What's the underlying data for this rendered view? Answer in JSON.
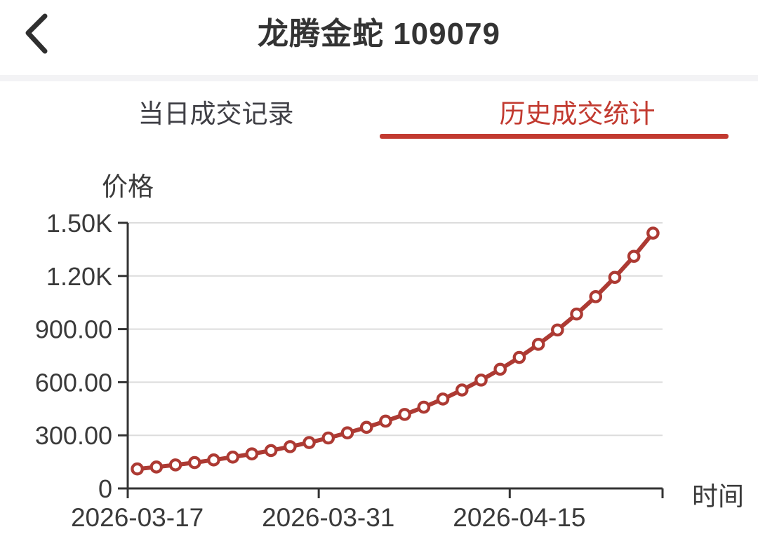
{
  "header": {
    "title": "龙腾金蛇 109079",
    "back_icon": "chevron-left"
  },
  "tabs": [
    {
      "label": "当日成交记录",
      "active": false
    },
    {
      "label": "历史成交统计",
      "active": true
    }
  ],
  "colors": {
    "accent_red": "#c23a30",
    "line_red": "#ad3a33",
    "axis": "#333333",
    "grid": "#dcdcdc",
    "text_dark": "#3a3a3a",
    "divider": "#f3f3f5"
  },
  "chart_data": {
    "type": "line",
    "title": "",
    "ylabel": "价格",
    "xlabel": "时间",
    "ylim": [
      0,
      1500
    ],
    "grid": "horizontal",
    "legend": "none",
    "marker": "open-circle",
    "num_points": 28,
    "values": [
      110,
      121,
      133,
      146,
      161,
      177,
      195,
      214,
      236,
      259,
      285,
      314,
      345,
      380,
      418,
      459,
      505,
      556,
      612,
      673,
      740,
      814,
      895,
      985,
      1083,
      1192,
      1311,
      1442
    ],
    "y_ticks": [
      {
        "value": 0,
        "label": "0"
      },
      {
        "value": 300,
        "label": "300.00"
      },
      {
        "value": 600,
        "label": "600.00"
      },
      {
        "value": 900,
        "label": "900.00"
      },
      {
        "value": 1200,
        "label": "1.20K"
      },
      {
        "value": 1500,
        "label": "1.50K"
      }
    ],
    "x_tick_labels": [
      {
        "index": 0,
        "label": "2026-03-17"
      },
      {
        "index": 10,
        "label": "2026-03-31"
      },
      {
        "index": 20,
        "label": "2026-04-15"
      }
    ]
  }
}
